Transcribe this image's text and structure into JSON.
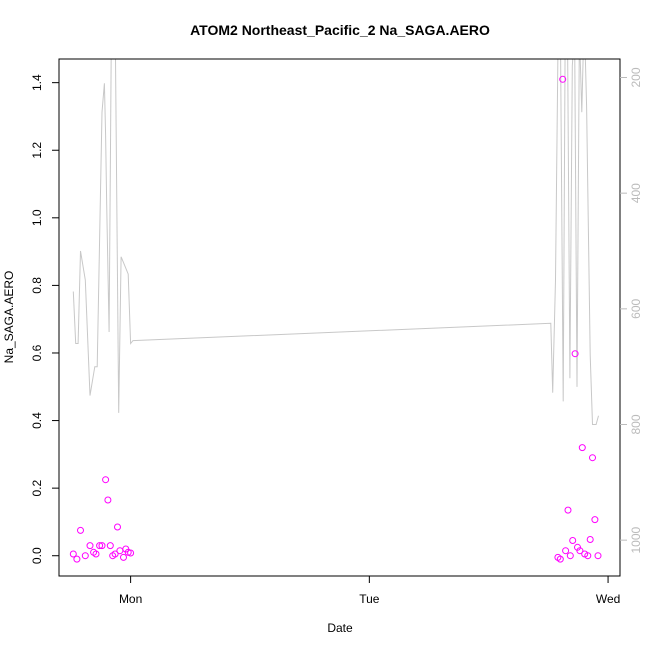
{
  "chart_data": {
    "type": "scatter",
    "title": "ATOM2 Northeast_Pacific_2 Na_SAGA.AERO",
    "xlabel": "Date",
    "ylabel": "Na_SAGA.AERO",
    "x_unit": "days",
    "x_ticks": [
      {
        "value": 1.0,
        "label": "Mon"
      },
      {
        "value": 2.0,
        "label": "Tue"
      },
      {
        "value": 3.0,
        "label": "Wed"
      }
    ],
    "xlim": [
      0.7,
      3.05
    ],
    "ylim": [
      -0.06,
      1.47
    ],
    "y_ticks": [
      0.0,
      0.2,
      0.4,
      0.6,
      0.8,
      1.0,
      1.2,
      1.4
    ],
    "y2_ticks": [
      200,
      400,
      600,
      800,
      1000
    ],
    "y2lim": [
      1062,
      168
    ],
    "grid": false,
    "legend": "none",
    "colors": {
      "points": "#ff00ff",
      "line": "#c8c8c8",
      "axis": "#000000",
      "axis2": "#bbbbbb"
    },
    "series": [
      {
        "role": "points",
        "axis": "left",
        "x": [
          0.76,
          0.775,
          0.79,
          0.81,
          0.83,
          0.845,
          0.855,
          0.87,
          0.88,
          0.895,
          0.905,
          0.915,
          0.925,
          0.935,
          0.945,
          0.955,
          0.97,
          0.98,
          0.99,
          1.0,
          2.79,
          2.8,
          2.81,
          2.822,
          2.832,
          2.842,
          2.852,
          2.862,
          2.872,
          2.882,
          2.892,
          2.902,
          2.915,
          2.925,
          2.935,
          2.945,
          2.958
        ],
        "y": [
          0.005,
          -0.01,
          0.075,
          0.0,
          0.03,
          0.01,
          0.005,
          0.03,
          0.03,
          0.225,
          0.165,
          0.03,
          0.0,
          0.005,
          0.085,
          0.015,
          -0.005,
          0.02,
          0.01,
          0.008,
          -0.005,
          -0.01,
          1.41,
          0.015,
          0.135,
          0.0,
          0.045,
          0.598,
          0.025,
          0.015,
          0.32,
          0.005,
          0.0,
          0.048,
          0.29,
          0.107,
          0.0
        ]
      },
      {
        "role": "line",
        "axis": "right",
        "x": [
          0.76,
          0.77,
          0.78,
          0.79,
          0.81,
          0.83,
          0.84,
          0.85,
          0.86,
          0.88,
          0.89,
          0.895,
          0.9,
          0.91,
          0.92,
          0.935,
          0.95,
          0.96,
          0.97,
          0.99,
          1.0,
          1.01,
          2.76,
          2.768,
          2.78,
          2.79,
          2.8,
          2.812,
          2.82,
          2.83,
          2.84,
          2.85,
          2.86,
          2.87,
          2.88,
          2.89,
          2.9,
          2.91,
          2.925,
          2.935,
          2.95,
          2.96
        ],
        "y": [
          570,
          660,
          660,
          500,
          550,
          750,
          725,
          700,
          700,
          260,
          210,
          300,
          420,
          640,
          90,
          90,
          780,
          510,
          520,
          540,
          660,
          655,
          625,
          745,
          550,
          160,
          90,
          760,
          150,
          120,
          720,
          180,
          120,
          735,
          120,
          260,
          90,
          250,
          680,
          800,
          800,
          785
        ]
      }
    ]
  }
}
